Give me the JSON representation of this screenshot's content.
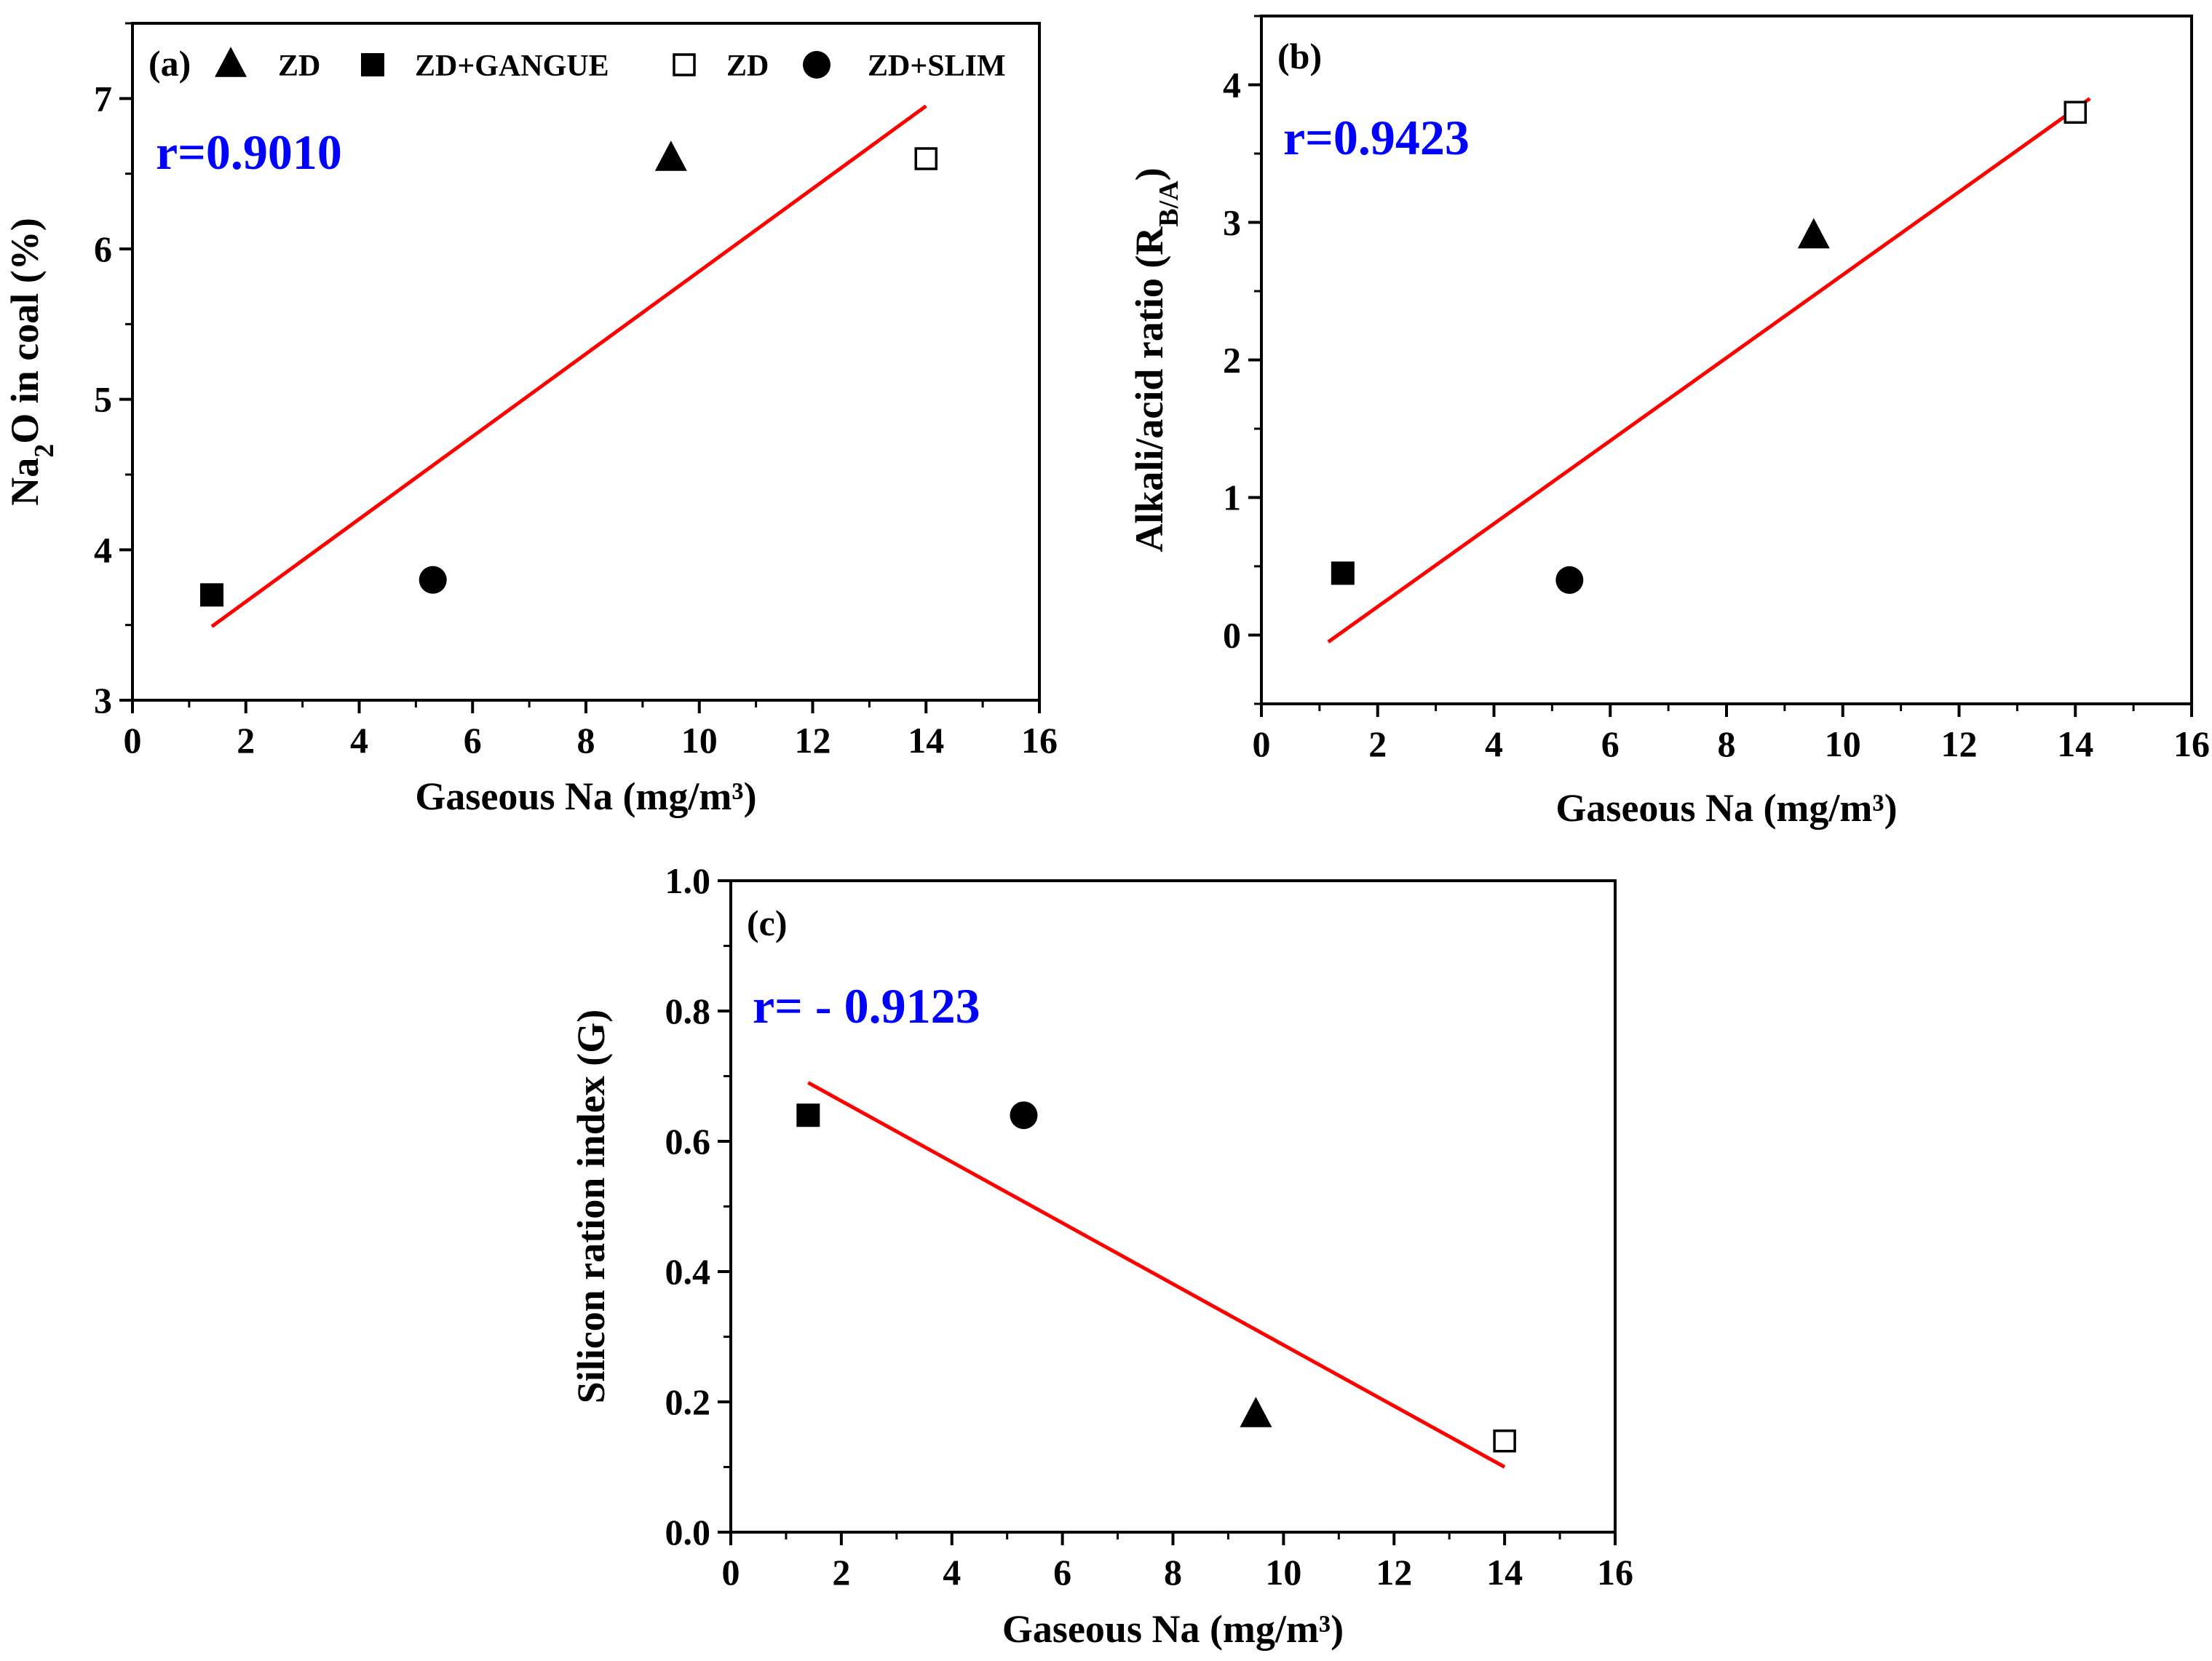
{
  "legend": {
    "entries": [
      {
        "label": "ZD",
        "marker": "triangle-filled"
      },
      {
        "label": "ZD+GANGUE",
        "marker": "square-filled"
      },
      {
        "label": "ZD",
        "marker": "square-open"
      },
      {
        "label": "ZD+SLIM",
        "marker": "circle-filled"
      }
    ]
  },
  "colors": {
    "fit_line": "#ff0000",
    "annotation": "#0000ff",
    "axis": "#000000"
  },
  "chart_data": [
    {
      "id": "a",
      "type": "scatter",
      "panel_label": "(a)",
      "annotation": "r=0.9010",
      "xlabel": "Gaseous Na (mg/m³)",
      "ylabel_parts": [
        "Na",
        "2",
        "O in coal (%)"
      ],
      "xlim": [
        0,
        16
      ],
      "ylim": [
        3,
        7.5
      ],
      "xticks": [
        0,
        2,
        4,
        6,
        8,
        10,
        12,
        14,
        16
      ],
      "yticks": [
        3,
        4,
        5,
        6,
        7
      ],
      "points": [
        {
          "x": 1.4,
          "y": 3.7,
          "marker": "square-filled"
        },
        {
          "x": 5.3,
          "y": 3.8,
          "marker": "circle-filled"
        },
        {
          "x": 9.5,
          "y": 6.6,
          "marker": "triangle-filled"
        },
        {
          "x": 14.0,
          "y": 6.6,
          "marker": "square-open"
        }
      ],
      "fit_line": [
        [
          1.4,
          3.49
        ],
        [
          14.0,
          6.95
        ]
      ]
    },
    {
      "id": "b",
      "type": "scatter",
      "panel_label": "(b)",
      "annotation": "r=0.9423",
      "xlabel": "Gaseous Na (mg/m³)",
      "ylabel_parts": [
        "Alkali/acid ratio (R",
        "B/A",
        ")"
      ],
      "xlim": [
        0,
        16
      ],
      "ylim": [
        -0.5,
        4.5
      ],
      "xticks": [
        0,
        2,
        4,
        6,
        8,
        10,
        12,
        14,
        16
      ],
      "yticks": [
        0,
        1,
        2,
        3,
        4
      ],
      "points": [
        {
          "x": 1.4,
          "y": 0.45,
          "marker": "square-filled"
        },
        {
          "x": 5.3,
          "y": 0.4,
          "marker": "circle-filled"
        },
        {
          "x": 9.5,
          "y": 2.9,
          "marker": "triangle-filled"
        },
        {
          "x": 14.0,
          "y": 3.8,
          "marker": "square-open"
        }
      ],
      "fit_line": [
        [
          1.15,
          -0.05
        ],
        [
          14.25,
          3.9
        ]
      ]
    },
    {
      "id": "c",
      "type": "scatter",
      "panel_label": "(c)",
      "annotation": "r= - 0.9123",
      "xlabel": "Gaseous Na (mg/m³)",
      "ylabel_parts": [
        "Silicon ration index (G)",
        "",
        ""
      ],
      "xlim": [
        0,
        16
      ],
      "ylim": [
        0,
        1
      ],
      "xticks": [
        0,
        2,
        4,
        6,
        8,
        10,
        12,
        14,
        16
      ],
      "yticks": [
        0.0,
        0.2,
        0.4,
        0.6,
        0.8,
        1.0
      ],
      "ytick_decimals": 1,
      "points": [
        {
          "x": 1.4,
          "y": 0.64,
          "marker": "square-filled"
        },
        {
          "x": 5.3,
          "y": 0.64,
          "marker": "circle-filled"
        },
        {
          "x": 9.5,
          "y": 0.18,
          "marker": "triangle-filled"
        },
        {
          "x": 14.0,
          "y": 0.14,
          "marker": "square-open"
        }
      ],
      "fit_line": [
        [
          1.4,
          0.69
        ],
        [
          14.0,
          0.1
        ]
      ]
    }
  ]
}
